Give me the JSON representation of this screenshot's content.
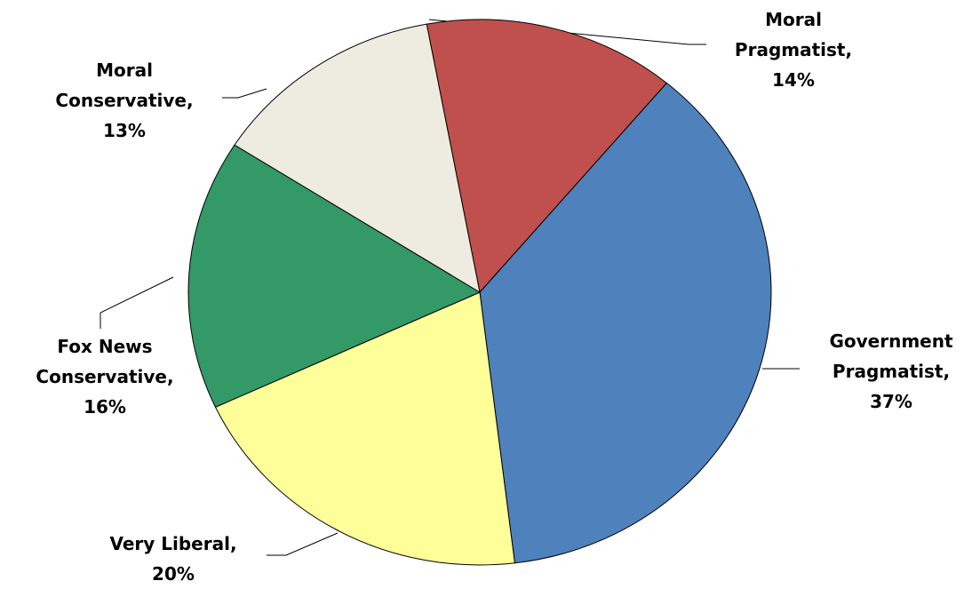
{
  "chart_data": {
    "type": "pie",
    "categories": [
      "Moral Pragmatist,",
      "Government Pragmatist,",
      "Very Liberal,",
      "Fox News Conservative,",
      "Moral Conservative,"
    ],
    "values": [
      14,
      37,
      20,
      16,
      13
    ],
    "value_labels": [
      "14%",
      "37%",
      "20%",
      "16%",
      "13%"
    ],
    "colors": [
      "#c0504d",
      "#4f81bd",
      "#ffff99",
      "#339966",
      "#eeece1"
    ]
  }
}
